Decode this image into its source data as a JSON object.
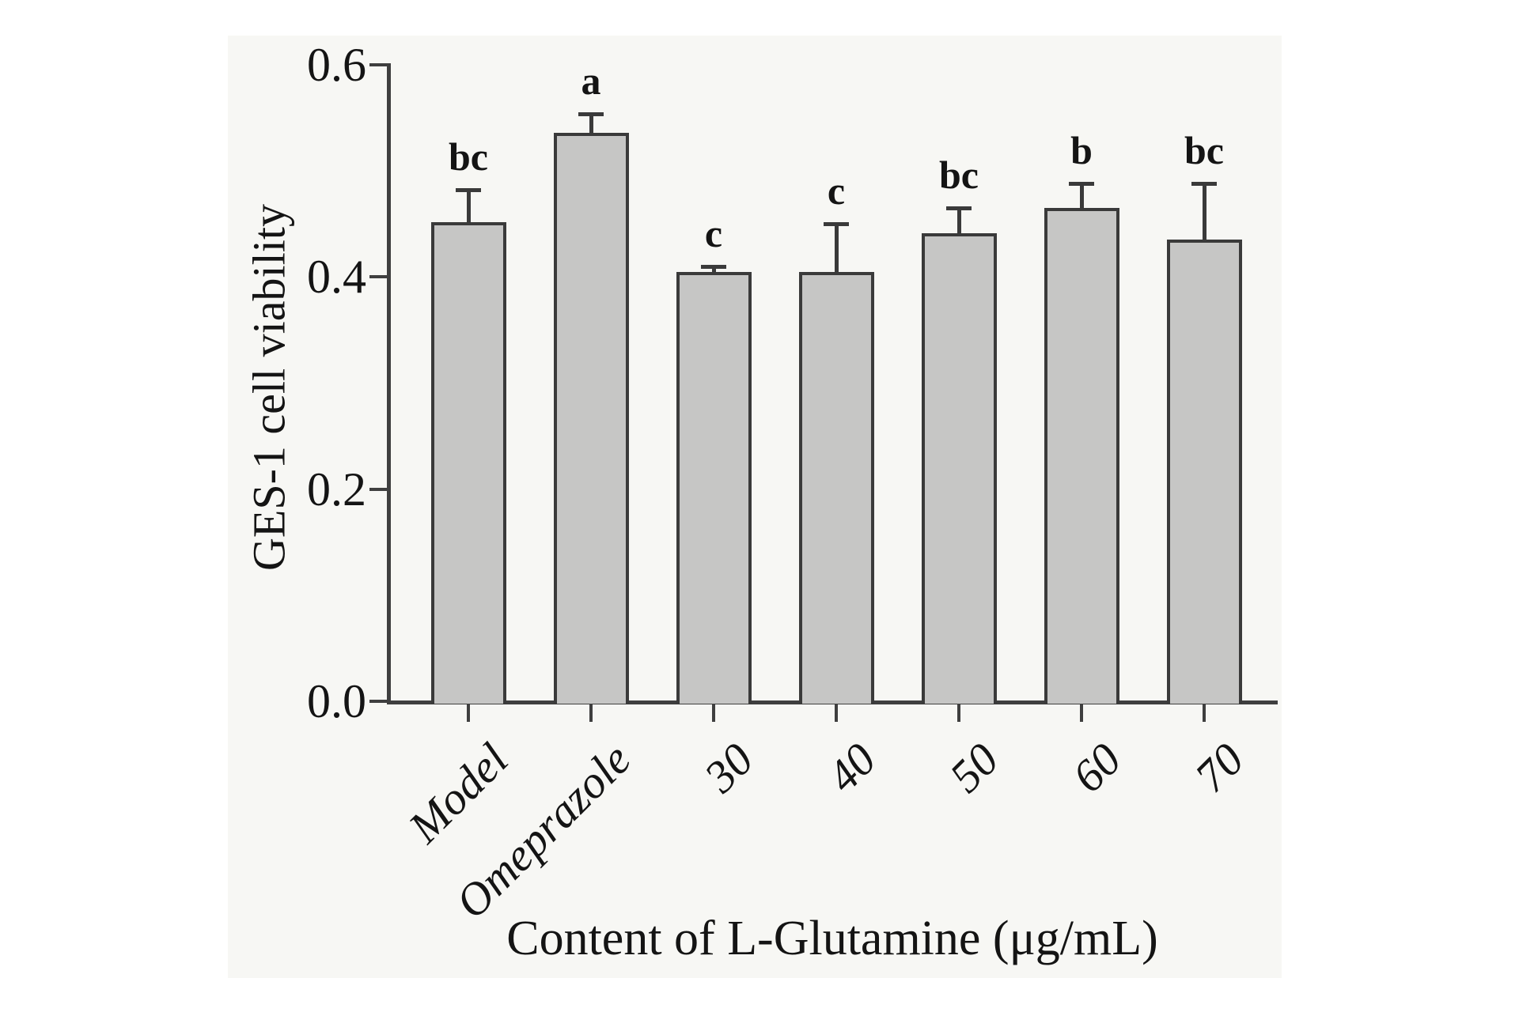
{
  "chart_data": {
    "type": "bar",
    "title": "",
    "xlabel": "Content of L-Glutamine (μg/mL)",
    "ylabel": "GES-1 cell viability",
    "categories": [
      "Model",
      "Omeprazole",
      "30",
      "40",
      "50",
      "60",
      "70"
    ],
    "values": [
      0.452,
      0.536,
      0.405,
      0.405,
      0.441,
      0.465,
      0.435
    ],
    "errors_upper": [
      0.03,
      0.018,
      0.005,
      0.045,
      0.024,
      0.023,
      0.053
    ],
    "significance_letters": [
      "bc",
      "a",
      "c",
      "c",
      "bc",
      "b",
      "bc"
    ],
    "yticks": [
      "0.0",
      "0.2",
      "0.4",
      "0.6"
    ],
    "ytick_values": [
      0.0,
      0.2,
      0.4,
      0.6
    ],
    "ylim": [
      0.0,
      0.6
    ],
    "grid": false,
    "legend": "none",
    "bar_fill": "#c6c6c5",
    "bar_border": "#3a3a3a",
    "axis_color": "#3f3f3f",
    "text_color": "#141414",
    "panel_background": "#f7f7f4"
  }
}
